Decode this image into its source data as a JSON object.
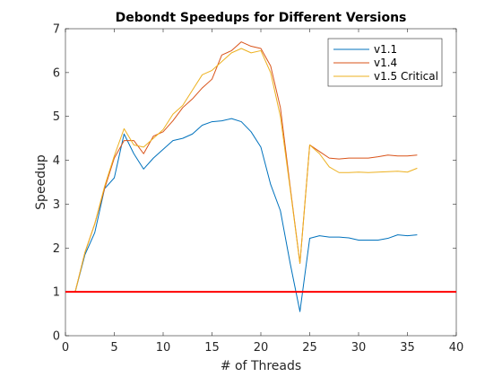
{
  "chart_data": {
    "type": "line",
    "title": "Debondt Speedups for Different Versions",
    "xlabel": "# of Threads",
    "ylabel": "Speedup",
    "xlim": [
      0,
      40
    ],
    "ylim": [
      0,
      7
    ],
    "xticks": [
      0,
      5,
      10,
      15,
      20,
      25,
      30,
      35,
      40
    ],
    "yticks": [
      0,
      1,
      2,
      3,
      4,
      5,
      6,
      7
    ],
    "grid": false,
    "legend_position": "top-right",
    "x": [
      1,
      2,
      3,
      4,
      5,
      6,
      7,
      8,
      9,
      10,
      11,
      12,
      13,
      14,
      15,
      16,
      17,
      18,
      19,
      20,
      21,
      22,
      23,
      24,
      25,
      26,
      27,
      28,
      29,
      30,
      31,
      32,
      33,
      34,
      35,
      36
    ],
    "series": [
      {
        "name": "v1.1",
        "color": "#0072BD",
        "values": [
          1.0,
          1.85,
          2.35,
          3.35,
          3.6,
          4.6,
          4.15,
          3.8,
          4.05,
          4.25,
          4.45,
          4.5,
          4.6,
          4.8,
          4.88,
          4.9,
          4.95,
          4.88,
          4.65,
          4.3,
          3.45,
          2.85,
          1.65,
          0.55,
          2.22,
          2.28,
          2.25,
          2.25,
          2.23,
          2.18,
          2.18,
          2.18,
          2.22,
          2.3,
          2.28,
          2.3
        ]
      },
      {
        "name": "v1.4",
        "color": "#D95319",
        "values": [
          1.0,
          1.9,
          2.55,
          3.35,
          4.05,
          4.45,
          4.45,
          4.15,
          4.55,
          4.65,
          4.9,
          5.2,
          5.4,
          5.65,
          5.85,
          6.4,
          6.5,
          6.7,
          6.6,
          6.55,
          6.15,
          5.2,
          3.4,
          1.65,
          4.35,
          4.2,
          4.05,
          4.03,
          4.05,
          4.05,
          4.05,
          4.08,
          4.12,
          4.1,
          4.1,
          4.12
        ]
      },
      {
        "name": "v1.5 Critical",
        "color": "#EDB120",
        "values": [
          1.0,
          1.9,
          2.55,
          3.4,
          4.1,
          4.72,
          4.35,
          4.3,
          4.5,
          4.7,
          5.05,
          5.25,
          5.6,
          5.95,
          6.05,
          6.25,
          6.45,
          6.55,
          6.45,
          6.5,
          6.0,
          5.0,
          3.35,
          1.65,
          4.35,
          4.15,
          3.85,
          3.72,
          3.72,
          3.73,
          3.72,
          3.73,
          3.74,
          3.75,
          3.73,
          3.82
        ]
      }
    ],
    "reference_line": {
      "y": 1,
      "color": "#FF0000"
    }
  }
}
